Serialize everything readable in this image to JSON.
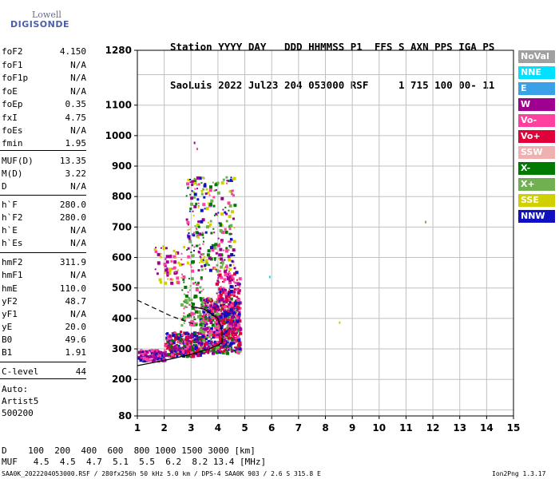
{
  "logo": {
    "line1": "Lowell",
    "line2": "DIGISONDE"
  },
  "header": {
    "line1": "Station YYYY DAY   DDD HHMMSS P1  FFS S AXN PPS IGA PS",
    "line2": "SaoLuis 2022 Jul23 204 053000 RSF     1 715 100 00- 11"
  },
  "params": [
    {
      "name": "foF2",
      "value": "4.150"
    },
    {
      "name": "foF1",
      "value": "N/A"
    },
    {
      "name": "foF1p",
      "value": "N/A"
    },
    {
      "name": "foE",
      "value": "N/A"
    },
    {
      "name": "foEp",
      "value": "0.35"
    },
    {
      "name": "fxI",
      "value": "4.75"
    },
    {
      "name": "foEs",
      "value": "N/A"
    },
    {
      "name": "fmin",
      "value": "1.95"
    },
    {
      "name": "MUF(D)",
      "value": "13.35"
    },
    {
      "name": "M(D)",
      "value": "3.22"
    },
    {
      "name": "D",
      "value": "N/A"
    },
    {
      "name": "h`F",
      "value": "280.0"
    },
    {
      "name": "h`F2",
      "value": "280.0"
    },
    {
      "name": "h`E",
      "value": "N/A"
    },
    {
      "name": "h`Es",
      "value": "N/A"
    },
    {
      "name": "hmF2",
      "value": "311.9"
    },
    {
      "name": "hmF1",
      "value": "N/A"
    },
    {
      "name": "hmE",
      "value": "110.0"
    },
    {
      "name": "yF2",
      "value": "48.7"
    },
    {
      "name": "yF1",
      "value": "N/A"
    },
    {
      "name": "yE",
      "value": "20.0"
    },
    {
      "name": "B0",
      "value": "49.6"
    },
    {
      "name": "B1",
      "value": "1.91"
    },
    {
      "name": "C-level",
      "value": "44"
    }
  ],
  "auto": {
    "line1": "Auto:",
    "line2": "Artist5",
    "line3": "500200"
  },
  "legend": [
    {
      "label": "NoVal",
      "color": "#a0a0a0"
    },
    {
      "label": "NNE",
      "color": "#00e0ff"
    },
    {
      "label": "E",
      "color": "#3aa0e8"
    },
    {
      "label": "W",
      "color": "#a00090"
    },
    {
      "label": "Vo-",
      "color": "#ff40a0"
    },
    {
      "label": "Vo+",
      "color": "#e0003a"
    },
    {
      "label": "SSW",
      "color": "#f0b0b0"
    },
    {
      "label": "X-",
      "color": "#007a00"
    },
    {
      "label": "X+",
      "color": "#70b050"
    },
    {
      "label": "SSE",
      "color": "#d0d000"
    },
    {
      "label": "NNW",
      "color": "#1010c0"
    }
  ],
  "muf_table": {
    "d_row": "D    100  200  400  600  800 1000 1500 3000 [km]",
    "muf_row": "MUF   4.5  4.5  4.7  5.1  5.5  6.2  8.2 13.4 [MHz]"
  },
  "footer": {
    "left": "SAA0K_2022204053000.RSF / 280fx256h 50 kHz 5.0 km / DPS-4 SAA0K 903 / 2.6 S 315.8 E",
    "right": "Ion2Png 1.3.17"
  },
  "chart_data": {
    "type": "scatter",
    "xlim": [
      1,
      15
    ],
    "ylim": [
      80,
      1280
    ],
    "x_ticks": [
      "1",
      "2",
      "3",
      "4",
      "5",
      "6",
      "7",
      "8",
      "9",
      "10",
      "11",
      "12",
      "13",
      "14",
      "15"
    ],
    "y_ticks": [
      "80",
      "200",
      "300",
      "400",
      "500",
      "600",
      "700",
      "800",
      "900",
      "1000",
      "1100",
      "1280"
    ],
    "y_tick_values": [
      80,
      200,
      300,
      400,
      500,
      600,
      700,
      800,
      900,
      1000,
      1100,
      1280
    ],
    "grid": true,
    "clusters": [
      {
        "x": [
          1.0,
          2.0
        ],
        "y": [
          265,
          300
        ],
        "n": 160,
        "colors": [
          "#1010c0",
          "#a00090",
          "#ff40a0"
        ]
      },
      {
        "x": [
          2.0,
          3.3
        ],
        "y": [
          280,
          360
        ],
        "n": 360,
        "colors": [
          "#1010c0",
          "#ff40a0",
          "#a00090",
          "#007a00",
          "#e0003a"
        ]
      },
      {
        "x": [
          3.3,
          4.8
        ],
        "y": [
          290,
          470
        ],
        "n": 640,
        "colors": [
          "#ff40a0",
          "#a00090",
          "#1010c0",
          "#e0003a",
          "#007a00",
          "#70b050"
        ]
      },
      {
        "x": [
          3.9,
          4.8
        ],
        "y": [
          350,
          560
        ],
        "n": 260,
        "colors": [
          "#ff40a0",
          "#e0003a",
          "#1010c0",
          "#a00090"
        ]
      },
      {
        "x": [
          2.8,
          4.6
        ],
        "y": [
          560,
          870
        ],
        "n": 280,
        "colors": [
          "#a00090",
          "#ff40a0",
          "#007a00",
          "#1010c0",
          "#70b050",
          "#d0d000"
        ]
      },
      {
        "x": [
          2.6,
          3.5
        ],
        "y": [
          380,
          540
        ],
        "n": 110,
        "colors": [
          "#70b050",
          "#ff40a0",
          "#007a00"
        ]
      },
      {
        "x": [
          1.6,
          2.7
        ],
        "y": [
          520,
          640
        ],
        "n": 70,
        "colors": [
          "#ff40a0",
          "#a00090",
          "#d0d000"
        ]
      }
    ],
    "outliers": [
      {
        "x": 5.9,
        "y": 540,
        "color": "#00e0ff"
      },
      {
        "x": 8.5,
        "y": 390,
        "color": "#d0d000"
      },
      {
        "x": 11.7,
        "y": 720,
        "color": "#70b050"
      },
      {
        "x": 3.1,
        "y": 980,
        "color": "#a00090"
      },
      {
        "x": 3.2,
        "y": 960,
        "color": "#ff40a0"
      }
    ],
    "profile_solid": [
      [
        1.0,
        245
      ],
      [
        2.0,
        262
      ],
      [
        3.0,
        282
      ],
      [
        3.6,
        298
      ],
      [
        4.0,
        312
      ],
      [
        4.15,
        320
      ],
      [
        4.15,
        360
      ],
      [
        4.0,
        400
      ],
      [
        3.5,
        430
      ],
      [
        3.0,
        440
      ]
    ],
    "profile_dashed": [
      [
        1.0,
        460
      ],
      [
        1.6,
        435
      ],
      [
        2.2,
        410
      ],
      [
        2.8,
        390
      ],
      [
        3.2,
        380
      ]
    ]
  }
}
